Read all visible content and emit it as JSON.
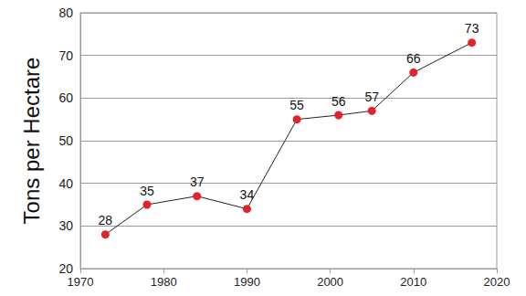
{
  "chart_data": {
    "type": "line",
    "y_label": "Tons per Hectare",
    "x": [
      1973,
      1978,
      1984,
      1990,
      1996,
      2001,
      2005,
      2010,
      2017
    ],
    "values": [
      28,
      35,
      37,
      34,
      55,
      56,
      57,
      66,
      73
    ],
    "color": "#e3232b",
    "marker": "circle",
    "xlim": [
      1970,
      2020
    ],
    "xticks": [
      1970,
      1980,
      1990,
      2000,
      2010,
      2020
    ],
    "ylim": [
      20,
      80
    ],
    "yticks": [
      20,
      30,
      40,
      50,
      60,
      70,
      80
    ],
    "grid": true,
    "data_labels": true
  }
}
